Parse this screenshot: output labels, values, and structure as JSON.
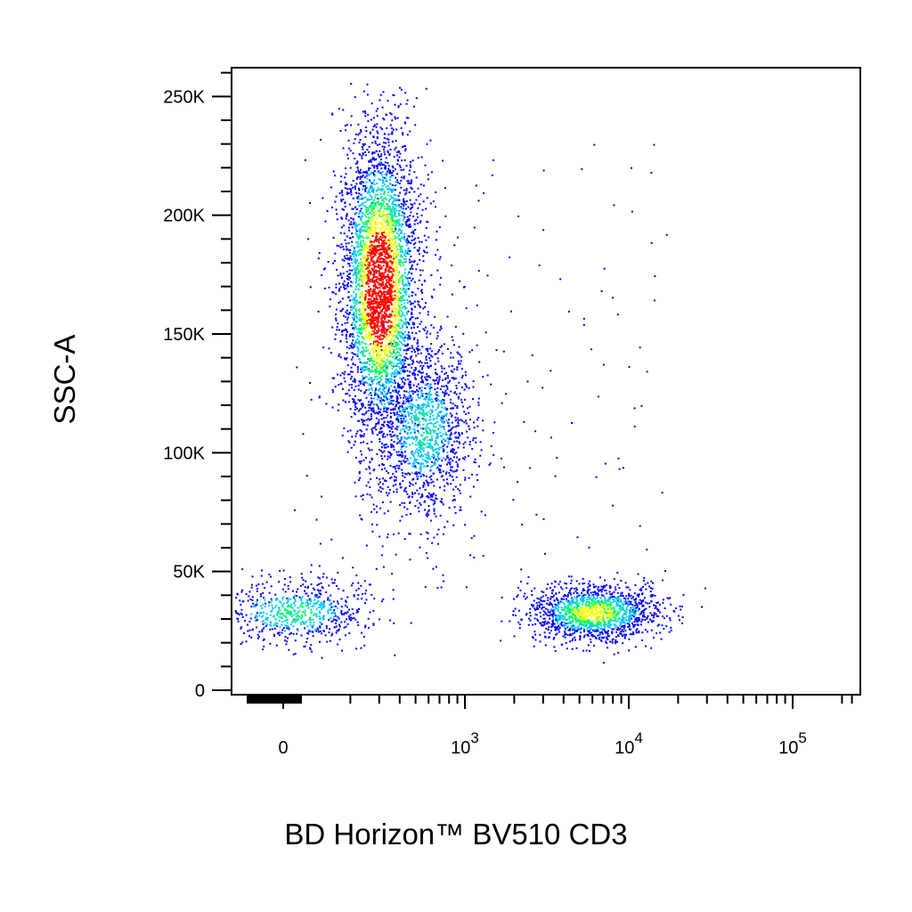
{
  "chart_data": {
    "type": "scatter",
    "style": "density pseudocolor flow cytometry dot plot",
    "xlabel": "BD Horizon™ BV510 CD3",
    "ylabel": "SSC-A",
    "x_scale": "biexponential (linear near 0, log above)",
    "y_scale": "linear",
    "ylim": [
      0,
      262144
    ],
    "y_ticks": [
      {
        "value": 0,
        "label": "0"
      },
      {
        "value": 50000,
        "label": "50K"
      },
      {
        "value": 100000,
        "label": "100K"
      },
      {
        "value": 150000,
        "label": "150K"
      },
      {
        "value": 200000,
        "label": "200K"
      },
      {
        "value": 250000,
        "label": "250K"
      }
    ],
    "x_ticks": [
      {
        "value": 0,
        "label": "0",
        "base": "0",
        "exp": ""
      },
      {
        "value": 1000,
        "label": "10^3",
        "base": "10",
        "exp": "3"
      },
      {
        "value": 10000,
        "label": "10^4",
        "base": "10",
        "exp": "4"
      },
      {
        "value": 100000,
        "label": "10^5",
        "base": "10",
        "exp": "5"
      }
    ],
    "density_colors": [
      "#0000ff",
      "#00c8ff",
      "#00ff66",
      "#ffff00",
      "#ff0000"
    ],
    "grid": false,
    "legend": "none",
    "populations": [
      {
        "x_center": 300,
        "y_center": 170000,
        "x_spread": 0.12,
        "y_spread": 33000,
        "count": 3800,
        "peak": 0.95
      },
      {
        "x_center": 550,
        "y_center": 110000,
        "x_spread": 0.16,
        "y_spread": 20000,
        "count": 1400,
        "peak": 0.5
      },
      {
        "x_center": 60,
        "y_center": 33000,
        "x_spread": 0.25,
        "y_spread": 7000,
        "count": 700,
        "peak": 0.55
      },
      {
        "x_center": 6000,
        "y_center": 33000,
        "x_spread": 0.2,
        "y_spread": 6000,
        "count": 1500,
        "peak": 0.7
      }
    ]
  }
}
